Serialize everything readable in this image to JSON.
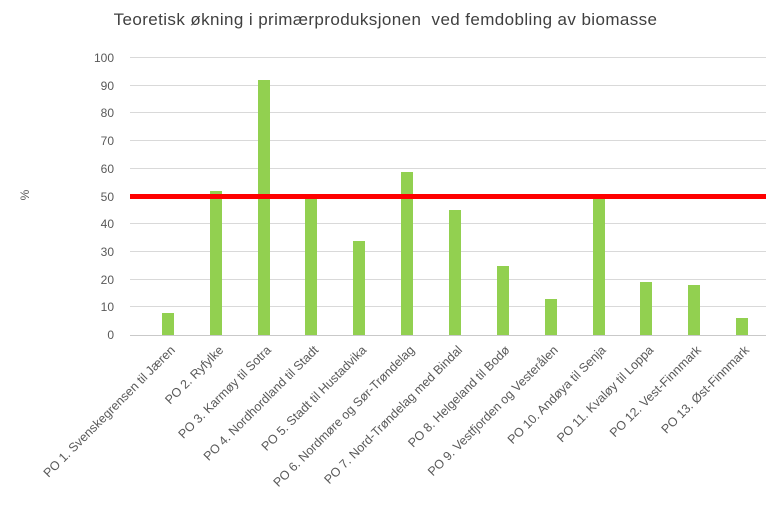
{
  "chart_data": {
    "type": "bar",
    "title": "Teoretisk økning i primærproduksjonen  ved femdobling av biomasse",
    "xlabel": "",
    "ylabel": "%",
    "ylim": [
      0,
      100
    ],
    "ytick_interval": 10,
    "yticks": [
      0,
      10,
      20,
      30,
      40,
      50,
      60,
      70,
      80,
      90,
      100
    ],
    "x_tick_rotation": 45,
    "grid": "horizontal",
    "legend": "none",
    "categories": [
      "PO 1. Svenskegrensen til Jæren",
      "PO 2. Ryfylke",
      "PO 3. Karmøy til Sotra",
      "PO 4. Nordhordland til Stadt",
      "PO 5. Stadt til Hustadvika",
      "PO 6. Nordmøre og Sør-Trøndelag",
      "PO 7. Nord-Trøndelag med Bindal",
      "PO 8. Helgeland til Bodø",
      "PO 9. Vestfjorden og Vesterålen",
      "PO 10. Andøya til Senja",
      "PO 11. Kvaløy til Loppa",
      "PO 12. Vest-Finnmark",
      "PO 13. Øst-Finnmark"
    ],
    "values": [
      8,
      52,
      92,
      50,
      34,
      59,
      45,
      25,
      13,
      51,
      19,
      18,
      6
    ],
    "reference_line": {
      "value": 50,
      "color": "#FF0000"
    },
    "bar_color": "#92D050",
    "gridline_color": "#D9D9D9",
    "title_color": "#404040",
    "axis_text_color": "#595959"
  }
}
